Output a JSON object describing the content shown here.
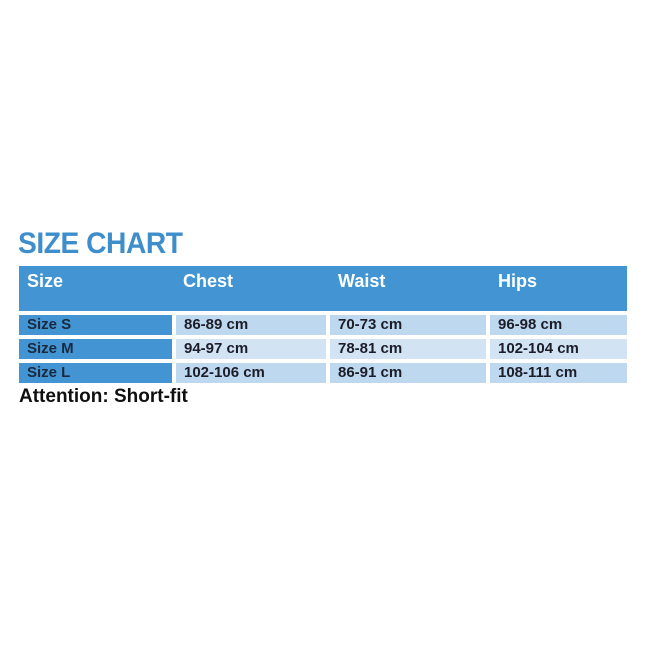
{
  "title": "SIZE CHART",
  "table": {
    "headers": [
      "Size",
      "Chest",
      "Waist",
      "Hips"
    ],
    "rows": [
      {
        "size": "Size S",
        "chest": "86-89 cm",
        "waist": "70-73 cm",
        "hips": "96-98 cm"
      },
      {
        "size": "Size M",
        "chest": "94-97 cm",
        "waist": "78-81 cm",
        "hips": "102-104 cm"
      },
      {
        "size": "Size L",
        "chest": "102-106 cm",
        "waist": "86-91 cm",
        "hips": "108-111 cm"
      }
    ]
  },
  "note": "Attention: Short-fit",
  "colors": {
    "background": "#ffffff",
    "title_text": "#3e8ecb",
    "header_bg": "#4295d2",
    "header_text": "#ffffff",
    "row_label_bg": "#4295d2",
    "row_label_text": "#1b2940",
    "cell_bg_light": "#bed8ef",
    "cell_bg_lighter": "#d2e3f4",
    "cell_text": "#1d1d29",
    "note_text": "#0f0f0f"
  }
}
